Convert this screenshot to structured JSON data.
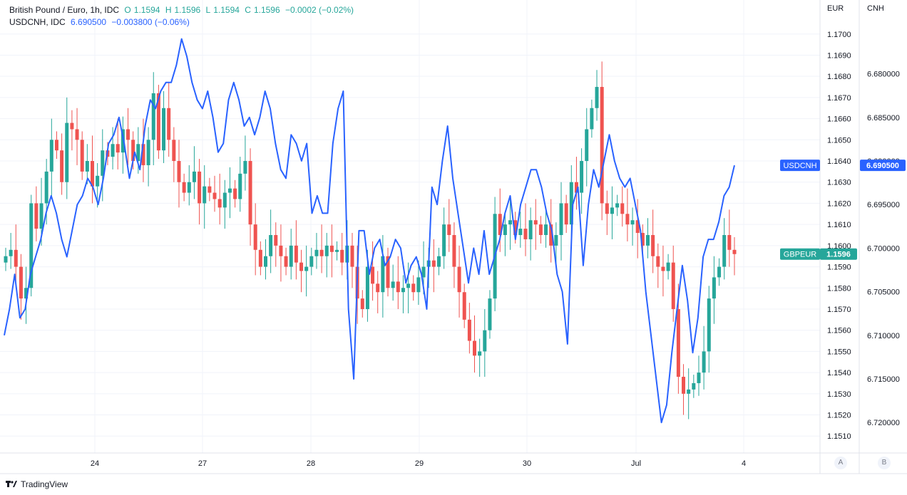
{
  "legend": {
    "main": {
      "name": "British Pound / Euro, 1h, IDC",
      "o_label": "O",
      "o": "1.1594",
      "h_label": "H",
      "h": "1.1596",
      "l_label": "L",
      "l": "1.1594",
      "c_label": "C",
      "c": "1.1596",
      "change": "−0.0002 (−0.02%)"
    },
    "secondary": {
      "name": "USDCNH, IDC",
      "value": "6.690500",
      "change": "−0.003800 (−0.06%)"
    }
  },
  "axis_titles": {
    "left_axis": "EUR",
    "right_axis": "CNH"
  },
  "footer": {
    "brand": "TradingView",
    "scale_a": "A",
    "scale_b": "B"
  },
  "colors": {
    "up": "#26a69a",
    "down": "#ef5350",
    "line": "#2962ff",
    "grid": "#f0f3fa"
  },
  "chart_data": {
    "type": "candlestick+line",
    "x_ticks": [
      "24",
      "27",
      "28",
      "29",
      "30",
      "Jul",
      "4"
    ],
    "eur_axis": {
      "range": [
        1.1502,
        1.1708
      ],
      "ticks": [
        "1.1700",
        "1.1690",
        "1.1680",
        "1.1670",
        "1.1660",
        "1.1650",
        "1.1640",
        "1.1630",
        "1.1620",
        "1.1610",
        "1.1600",
        "1.1590",
        "1.1580",
        "1.1570",
        "1.1560",
        "1.1550",
        "1.1540",
        "1.1530",
        "1.1520",
        "1.1510"
      ]
    },
    "cnh_axis": {
      "inverted": true,
      "range": [
        6.6735,
        6.7235
      ],
      "ticks": [
        "6.680000",
        "6.685000",
        "6.690000",
        "6.695000",
        "6.700000",
        "6.705000",
        "6.710000",
        "6.715000",
        "6.720000"
      ]
    },
    "badges": [
      {
        "label": "USDCNH",
        "value": "6.690500"
      },
      {
        "label": "GBPEUR",
        "value": "1.1596"
      }
    ],
    "gbpeur_close": [
      1.1595,
      1.1598,
      1.159,
      1.1575,
      1.158,
      1.162,
      1.1608,
      1.162,
      1.1635,
      1.165,
      1.1645,
      1.163,
      1.1658,
      1.1655,
      1.165,
      1.1635,
      1.164,
      1.1628,
      1.1633,
      1.1645,
      1.1642,
      1.1648,
      1.1644,
      1.1655,
      1.165,
      1.164,
      1.1648,
      1.1638,
      1.165,
      1.1672,
      1.1645,
      1.1665,
      1.165,
      1.164,
      1.163,
      1.1625,
      1.163,
      1.1635,
      1.162,
      1.1628,
      1.1625,
      1.1622,
      1.1618,
      1.1625,
      1.1627,
      1.1622,
      1.1634,
      1.164,
      1.161,
      1.1598,
      1.159,
      1.1595,
      1.1605,
      1.16,
      1.1595,
      1.159,
      1.16,
      1.1592,
      1.1588,
      1.159,
      1.1595,
      1.1598,
      1.1595,
      1.16,
      1.1597,
      1.1598,
      1.1592,
      1.16,
      1.159,
      1.1575,
      1.157,
      1.159,
      1.1582,
      1.1578,
      1.1595,
      1.158,
      1.1583,
      1.1578,
      1.158,
      1.1582,
      1.1578,
      1.1585,
      1.159,
      1.1593,
      1.159,
      1.1595,
      1.161,
      1.1605,
      1.159,
      1.1578,
      1.1565,
      1.1555,
      1.1548,
      1.155,
      1.156,
      1.1575,
      1.1615,
      1.1605,
      1.161,
      1.1612,
      1.1605,
      1.1608,
      1.1603,
      1.1612,
      1.161,
      1.1605,
      1.161,
      1.16,
      1.1605,
      1.162,
      1.161,
      1.163,
      1.1625,
      1.164,
      1.1655,
      1.1665,
      1.1675,
      1.162,
      1.1615,
      1.1618,
      1.162,
      1.1615,
      1.161,
      1.1612,
      1.1606,
      1.16,
      1.1605,
      1.1595,
      1.159,
      1.1588,
      1.1592,
      1.157,
      1.1538,
      1.153,
      1.1532,
      1.1535,
      1.154,
      1.155,
      1.1575,
      1.1585,
      1.159,
      1.1605,
      1.1598,
      1.1596
    ],
    "usdcnh_line": [
      6.71,
      6.707,
      6.703,
      6.708,
      6.707,
      6.703,
      6.701,
      6.699,
      6.696,
      6.694,
      6.696,
      6.699,
      6.701,
      6.698,
      6.695,
      6.694,
      6.692,
      6.693,
      6.695,
      6.692,
      6.688,
      6.687,
      6.685,
      6.688,
      6.692,
      6.689,
      6.691,
      6.686,
      6.683,
      6.684,
      6.682,
      6.681,
      6.681,
      6.679,
      6.676,
      6.678,
      6.681,
      6.683,
      6.684,
      6.682,
      6.685,
      6.689,
      6.688,
      6.683,
      6.681,
      6.683,
      6.686,
      6.685,
      6.687,
      6.685,
      6.682,
      6.684,
      6.688,
      6.691,
      6.692,
      6.687,
      6.688,
      6.69,
      6.688,
      6.696,
      6.694,
      6.696,
      6.696,
      6.688,
      6.684,
      6.682,
      6.707,
      6.715,
      6.698,
      6.698,
      6.703,
      6.7,
      6.699,
      6.702,
      6.701,
      6.699,
      6.7,
      6.704,
      6.702,
      6.701,
      6.703,
      6.707,
      6.693,
      6.695,
      6.69,
      6.686,
      6.692,
      6.696,
      6.7,
      6.704,
      6.7,
      6.703,
      6.698,
      6.703,
      6.701,
      6.699,
      6.696,
      6.694,
      6.699,
      6.695,
      6.693,
      6.691,
      6.691,
      6.693,
      6.696,
      6.698,
      6.703,
      6.705,
      6.711,
      6.695,
      6.693,
      6.702,
      6.695,
      6.691,
      6.693,
      6.69,
      6.687,
      6.69,
      6.692,
      6.693,
      6.692,
      6.695,
      6.698,
      6.705,
      6.71,
      6.715,
      6.72,
      6.718,
      6.712,
      6.707,
      6.702,
      6.706,
      6.712,
      6.708,
      6.701,
      6.699,
      6.699,
      6.697,
      6.694,
      6.693,
      6.6905
    ]
  }
}
